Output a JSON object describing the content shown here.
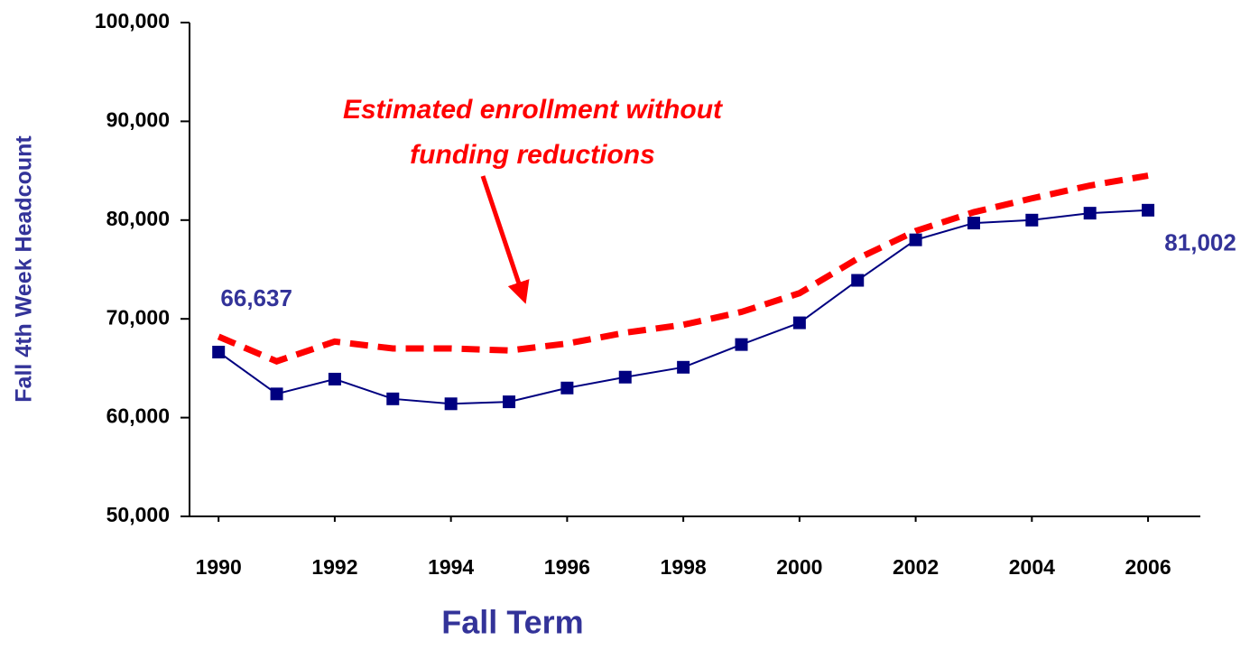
{
  "chart_data": {
    "type": "line",
    "xlabel": "Fall Term",
    "ylabel": "Fall 4th Week Headcount",
    "annotation": [
      "Estimated enrollment without",
      "funding reductions"
    ],
    "x": [
      1990,
      1991,
      1992,
      1993,
      1994,
      1995,
      1996,
      1997,
      1998,
      1999,
      2000,
      2001,
      2002,
      2003,
      2004,
      2005,
      2006
    ],
    "series": [
      {
        "color": "#ff0000",
        "style": "dashed",
        "values": [
          68200,
          65700,
          67700,
          67000,
          67000,
          66800,
          67500,
          68600,
          69400,
          70700,
          72600,
          76100,
          78900,
          80800,
          82200,
          83500,
          84500
        ]
      },
      {
        "color": "#000080",
        "style": "solid",
        "marker": "square",
        "values": [
          66637,
          62400,
          63900,
          61900,
          61400,
          61600,
          63000,
          64100,
          65100,
          67400,
          69600,
          73900,
          78000,
          79700,
          80000,
          80700,
          81002
        ],
        "value_labels": [
          "66,637",
          null,
          null,
          null,
          null,
          null,
          null,
          null,
          null,
          null,
          null,
          null,
          null,
          null,
          null,
          null,
          "81,002"
        ]
      }
    ],
    "xlim": [
      1989.5,
      2006.9
    ],
    "xticks": [
      1990,
      1992,
      1994,
      1996,
      1998,
      2000,
      2002,
      2004,
      2006
    ],
    "ylim": [
      50000,
      100000
    ],
    "yticks": [
      {
        "value": 50000,
        "label": "50,000"
      },
      {
        "value": 60000,
        "label": "60,000"
      },
      {
        "value": 70000,
        "label": "70,000"
      },
      {
        "value": 80000,
        "label": "80,000"
      },
      {
        "value": 90000,
        "label": "90,000"
      },
      {
        "value": 100000,
        "label": "100,000"
      }
    ],
    "grid": false
  }
}
